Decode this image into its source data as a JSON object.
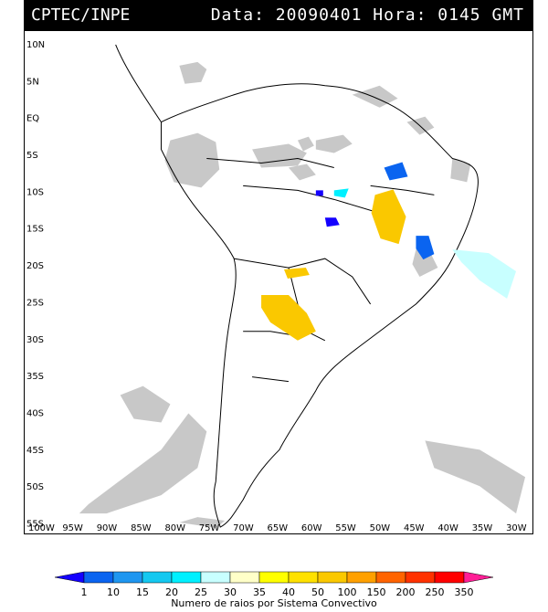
{
  "header": {
    "source": "CPTEC/INPE",
    "date_label": "Data: 20090401 Hora: 0145 GMT"
  },
  "axes": {
    "lat_labels": [
      "10N",
      "5N",
      "EQ",
      "5S",
      "10S",
      "15S",
      "20S",
      "25S",
      "30S",
      "35S",
      "40S",
      "45S",
      "50S",
      "55S"
    ],
    "lon_labels": [
      "100W",
      "95W",
      "90W",
      "85W",
      "80W",
      "75W",
      "70W",
      "65W",
      "60W",
      "55W",
      "50W",
      "45W",
      "40W",
      "35W",
      "30W"
    ]
  },
  "legend": {
    "title": "Numero de raios por Sistema Convectivo",
    "levels": [
      "1",
      "10",
      "15",
      "20",
      "25",
      "30",
      "35",
      "40",
      "50",
      "100",
      "150",
      "200",
      "250",
      "350"
    ],
    "colors": [
      "#1400ff",
      "#0a64f0",
      "#1e96f0",
      "#14c8f0",
      "#00f0ff",
      "#c8ffff",
      "#ffffc8",
      "#ffff00",
      "#ffe100",
      "#fac800",
      "#ffa000",
      "#ff6400",
      "#ff3200",
      "#ff0000",
      "#ff1e96"
    ]
  }
}
